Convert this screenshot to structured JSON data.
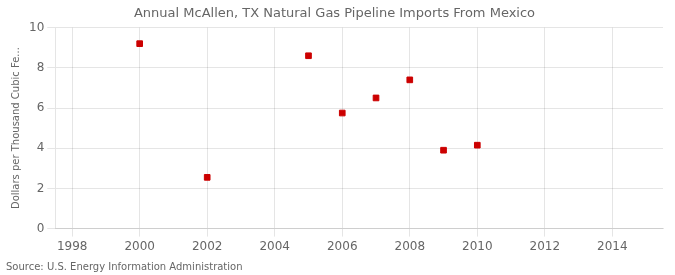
{
  "chart_data": {
    "type": "scatter",
    "title": "Annual McAllen, TX Natural Gas Pipeline Imports From Mexico",
    "ylabel": "Dollars per Thousand Cubic Fe...",
    "annotation": "Source: U.S. Energy Information Administration",
    "x": [
      2000,
      2002,
      2005,
      2006,
      2007,
      2008,
      2009,
      2010
    ],
    "values": [
      9.2,
      2.55,
      8.6,
      5.75,
      6.5,
      7.4,
      3.9,
      4.15
    ],
    "color": "#cc0000",
    "marker": "square",
    "xlim": [
      1997.5,
      2015.5
    ],
    "ylim": [
      0,
      10
    ],
    "xticks": [
      1998,
      2000,
      2002,
      2004,
      2006,
      2008,
      2010,
      2012,
      2014
    ],
    "yticks": [
      0,
      2,
      4,
      6,
      8,
      10
    ],
    "grid": true
  }
}
